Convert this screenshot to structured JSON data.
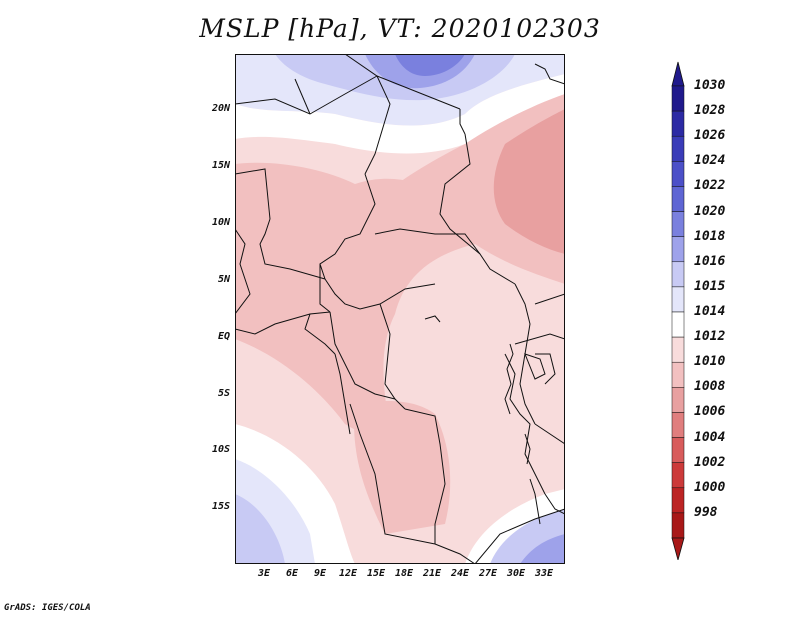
{
  "title": "MSLP [hPa], VT: 2020102303",
  "credit": "GrADS: IGES/COLA",
  "lat_labels": [
    "20N",
    "15N",
    "10N",
    "5N",
    "EQ",
    "5S",
    "10S",
    "15S"
  ],
  "lon_labels": [
    "3E",
    "6E",
    "9E",
    "12E",
    "15E",
    "18E",
    "21E",
    "24E",
    "27E",
    "30E",
    "33E"
  ],
  "colorbar": {
    "labels": [
      "1030",
      "1028",
      "1026",
      "1024",
      "1022",
      "1020",
      "1018",
      "1016",
      "1015",
      "1014",
      "1012",
      "1010",
      "1008",
      "1006",
      "1004",
      "1002",
      "1000",
      "998"
    ],
    "colors": [
      "#201a8c",
      "#2c2aa4",
      "#3a3cb8",
      "#4c50c8",
      "#5f66d4",
      "#7a80de",
      "#9ea2ea",
      "#c8caf4",
      "#e4e6fa",
      "#ffffff",
      "#f8dcdc",
      "#f2c0c0",
      "#e8a0a0",
      "#e07e7e",
      "#d85c5c",
      "#cc3a3a",
      "#bc2424",
      "#a81818"
    ]
  }
}
